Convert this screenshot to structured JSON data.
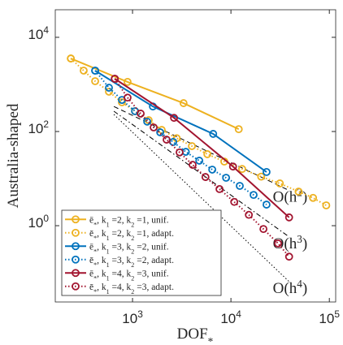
{
  "chart_data": {
    "type": "line",
    "xlabel": "DOF_*",
    "ylabel": "Australia-shaped",
    "xscale": "log",
    "yscale": "log",
    "xlim": [
      164,
      116000
    ],
    "ylim": [
      0.024,
      38500
    ],
    "xticks": [
      {
        "value": 1000,
        "label": "10^3"
      },
      {
        "value": 10000,
        "label": "10^4"
      },
      {
        "value": 100000,
        "label": "10^5"
      }
    ],
    "yticks": [
      {
        "value": 1,
        "label": "10^0"
      },
      {
        "value": 100,
        "label": "10^2"
      },
      {
        "value": 10000,
        "label": "10^4"
      }
    ],
    "legend": "lower left",
    "series": [
      {
        "name": "ē_*, k_1 =2, k_2 =1, unif.",
        "color": "#EDB120",
        "dash": "solid",
        "x": [
          236,
          890,
          3300,
          12000
        ],
        "values": [
          3550,
          1130,
          400,
          112
        ]
      },
      {
        "name": "ē_*, k_1 =2, k_2 =1, adapt.",
        "color": "#EDB120",
        "dash": "dotted",
        "x": [
          236,
          319,
          417,
          576,
          780,
          1060,
          1460,
          1980,
          2810,
          4010,
          5760,
          8560,
          13000,
          20300,
          31400,
          48700,
          68300,
          93000
        ],
        "values": [
          3550,
          1960,
          1170,
          700,
          417,
          270,
          174,
          108,
          72,
          49,
          33,
          23,
          16,
          11,
          7.9,
          5.3,
          3.9,
          2.7
        ]
      },
      {
        "name": "ē_*, k_1 =3, k_2 =2, unif.",
        "color": "#0072BD",
        "dash": "solid",
        "x": [
          417,
          1610,
          6600,
          23000
        ],
        "values": [
          1960,
          340,
          89,
          13.8
        ]
      },
      {
        "name": "ē_*, k_1 =3, k_2 =2, adapt.",
        "color": "#0072BD",
        "dash": "dotted",
        "x": [
          417,
          576,
          780,
          1060,
          1410,
          1910,
          2590,
          3480,
          4770,
          6460,
          8930,
          12300,
          17000,
          23000
        ],
        "values": [
          1960,
          851,
          468,
          270,
          162,
          96,
          60,
          37,
          24,
          15.5,
          10.4,
          7,
          4.5,
          2.8
        ]
      },
      {
        "name": "ē_*, k_1 =4, k_2 =3, unif.",
        "color": "#A2142F",
        "dash": "solid",
        "x": [
          660,
          2640,
          10500,
          39000
        ],
        "values": [
          1320,
          195,
          18,
          1.5
        ]
      },
      {
        "name": "ē_*, k_1 =4, k_2 =3, adapt.",
        "color": "#A2142F",
        "dash": "dotted",
        "x": [
          660,
          890,
          1210,
          1640,
          2220,
          3010,
          4080,
          5510,
          7650,
          10800,
          15200,
          21400,
          30100,
          39000
        ],
        "values": [
          1320,
          525,
          240,
          122,
          67,
          36,
          19.6,
          10.8,
          6,
          3.2,
          1.7,
          0.85,
          0.42,
          0.22
        ]
      }
    ],
    "reference_lines": [
      {
        "name": "O(h^2)",
        "style": "dashed",
        "color": "#000000",
        "x": [
          646,
          39000
        ],
        "values": [
          340,
          5.6
        ]
      },
      {
        "name": "O(h^3)",
        "style": "dashdot",
        "color": "#000000",
        "x": [
          646,
          39000
        ],
        "values": [
          270,
          0.58
        ]
      },
      {
        "name": "O(h^4)",
        "style": "dotted",
        "color": "#000000",
        "x": [
          646,
          39000
        ],
        "values": [
          230,
          0.065
        ]
      }
    ]
  }
}
